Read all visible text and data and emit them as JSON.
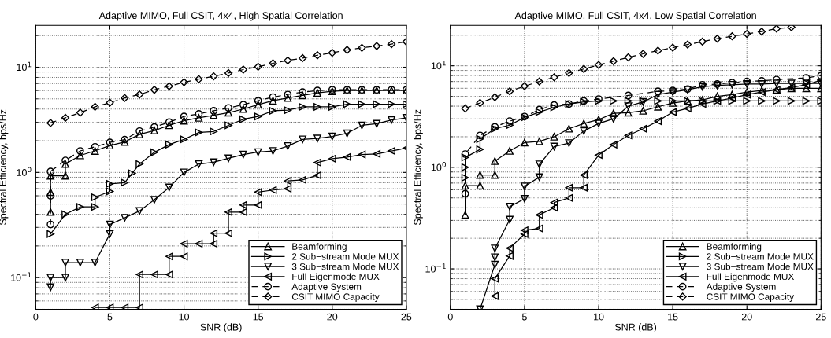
{
  "chart_data": [
    {
      "type": "line",
      "title": "Adaptive MIMO, Full CSIT, 4x4, High Spatial Correlation",
      "xlabel": "SNR (dB)",
      "ylabel": "Spectral Efficiency, bps/Hz",
      "log": "y",
      "xlim": [
        0,
        25
      ],
      "xticks": [
        0,
        5,
        10,
        15,
        20,
        25
      ],
      "ylim": [
        0.05,
        25
      ],
      "yticks": [
        {
          "value": 0.1,
          "label": "10$^{−1}$"
        },
        {
          "value": 1,
          "label": "10$^{0}$"
        },
        {
          "value": 10,
          "label": "10$^{1}$"
        }
      ],
      "grid": true,
      "legend": "bottom right",
      "series": [
        {
          "name": "Beamforming",
          "color": "#000000",
          "marker": "triangle-up",
          "line_style": "solid",
          "x": [
            1,
            1,
            1,
            2,
            2,
            3,
            4,
            5,
            6,
            7,
            8,
            9,
            10,
            11,
            12,
            13,
            14,
            15,
            16,
            17,
            18,
            19,
            20,
            21,
            22,
            23,
            24,
            25
          ],
          "values": [
            0.42,
            0.65,
            0.93,
            0.93,
            1.2,
            1.45,
            1.6,
            1.8,
            1.95,
            2.3,
            2.5,
            2.8,
            3.1,
            3.3,
            3.5,
            3.7,
            4.0,
            4.4,
            4.8,
            5.1,
            5.4,
            5.7,
            5.9,
            6.0,
            6.0,
            6.0,
            6.0,
            6.0
          ]
        },
        {
          "name": "2 Sub−stream Mode MUX",
          "color": "#000000",
          "marker": "triangle-right",
          "line_style": "solid",
          "x": [
            1,
            2,
            3,
            4,
            4,
            5,
            5,
            6,
            6.5,
            7,
            8,
            9,
            10,
            11,
            12,
            13,
            14,
            15,
            16,
            17,
            18,
            19,
            20,
            21,
            22,
            23,
            24,
            25
          ],
          "values": [
            0.26,
            0.4,
            0.47,
            0.47,
            0.58,
            0.66,
            0.78,
            0.8,
            0.98,
            1.2,
            1.55,
            1.84,
            2.06,
            2.4,
            2.45,
            2.8,
            3.2,
            3.4,
            3.85,
            3.9,
            4.2,
            4.2,
            4.2,
            4.45,
            4.45,
            4.45,
            4.45,
            4.45
          ]
        },
        {
          "name": "3 Sub−stream Mode MUX",
          "color": "#000000",
          "marker": "triangle-down",
          "line_style": "solid",
          "x": [
            1,
            1,
            2,
            2,
            3,
            4,
            5,
            5,
            6,
            7,
            8,
            9,
            10,
            11,
            12,
            13,
            14,
            15,
            16,
            17,
            18,
            19,
            20,
            21,
            22,
            23,
            24,
            25
          ],
          "values": [
            0.081,
            0.1,
            0.1,
            0.139,
            0.139,
            0.139,
            0.26,
            0.32,
            0.37,
            0.43,
            0.55,
            0.72,
            1.0,
            1.2,
            1.25,
            1.36,
            1.48,
            1.56,
            1.6,
            1.78,
            2.06,
            2.1,
            2.2,
            2.35,
            2.8,
            2.9,
            3.15,
            3.3
          ]
        },
        {
          "name": "Full Eigenmode MUX",
          "color": "#000000",
          "marker": "triangle-left",
          "line_style": "solid",
          "x": [
            4,
            5,
            6,
            7,
            7,
            8,
            9,
            9,
            10,
            10,
            11,
            12,
            12,
            13,
            13,
            14,
            14,
            15,
            15,
            16,
            17,
            17,
            18,
            19,
            19,
            20,
            21,
            22,
            23,
            24,
            25
          ],
          "values": [
            0.052,
            0.052,
            0.052,
            0.052,
            0.107,
            0.107,
            0.107,
            0.159,
            0.159,
            0.21,
            0.21,
            0.21,
            0.264,
            0.264,
            0.42,
            0.42,
            0.49,
            0.49,
            0.65,
            0.68,
            0.7,
            0.83,
            0.85,
            0.94,
            1.24,
            1.35,
            1.4,
            1.48,
            1.5,
            1.6,
            1.7
          ]
        },
        {
          "name": "Adaptive System",
          "color": "#000000",
          "marker": "circle",
          "line_style": "dashed",
          "x": [
            1,
            1,
            1,
            2,
            3,
            4,
            5,
            6,
            7,
            8,
            9,
            10,
            11,
            12,
            13,
            14,
            15,
            16,
            17,
            18,
            19,
            20,
            21,
            22,
            23,
            24,
            25
          ],
          "values": [
            0.32,
            0.6,
            1.02,
            1.3,
            1.6,
            1.75,
            1.93,
            2.05,
            2.47,
            2.7,
            3.0,
            3.4,
            3.6,
            3.85,
            4.1,
            4.4,
            4.8,
            5.2,
            5.5,
            5.8,
            6.0,
            6.1,
            6.1,
            6.1,
            6.1,
            6.1,
            6.1
          ]
        },
        {
          "name": "CSIT MIMO Capacity",
          "color": "#000000",
          "marker": "diamond",
          "line_style": "dashed",
          "x": [
            1,
            2,
            3,
            4,
            5,
            6,
            7,
            8,
            9,
            10,
            11,
            12,
            13,
            14,
            15,
            16,
            17,
            18,
            19,
            20,
            21,
            22,
            23,
            24,
            25
          ],
          "values": [
            2.95,
            3.3,
            3.7,
            4.2,
            4.6,
            5.1,
            5.5,
            6.1,
            6.6,
            7.2,
            7.7,
            8.2,
            8.8,
            9.5,
            10.1,
            10.9,
            11.6,
            12.2,
            13.0,
            13.7,
            14.6,
            15.3,
            15.9,
            16.6,
            17.5
          ]
        }
      ]
    },
    {
      "type": "line",
      "title": "Adaptive MIMO, Full CSIT, 4x4, Low Spatial Correlation",
      "xlabel": "SNR (dB)",
      "ylabel": "Spectral Efficiency, bps/Hz",
      "log": "y",
      "xlim": [
        0,
        25
      ],
      "xticks": [
        0,
        5,
        10,
        15,
        20,
        25
      ],
      "ylim": [
        0.04,
        25
      ],
      "yticks": [
        {
          "value": 0.1,
          "label": "10$^{−1}$"
        },
        {
          "value": 1,
          "label": "10$^{0}$"
        },
        {
          "value": 10,
          "label": "10$^{1}$"
        }
      ],
      "grid": true,
      "legend": "bottom right",
      "series": [
        {
          "name": "Beamforming",
          "color": "#000000",
          "marker": "triangle-up",
          "line_style": "solid",
          "x": [
            1,
            1,
            2,
            2,
            3,
            3,
            4,
            5,
            6,
            7,
            8,
            9,
            10,
            11,
            12,
            13,
            14,
            15,
            16,
            17,
            18,
            19,
            20,
            21,
            22,
            23,
            24,
            25
          ],
          "values": [
            0.34,
            0.66,
            0.66,
            0.84,
            0.84,
            1.15,
            1.45,
            1.75,
            1.8,
            2.0,
            2.4,
            2.7,
            2.95,
            3.4,
            3.45,
            3.6,
            3.95,
            4.3,
            4.5,
            4.6,
            5.0,
            5.2,
            5.5,
            5.7,
            5.8,
            6.0,
            6.0,
            6.0
          ]
        },
        {
          "name": "2 Sub−stream Mode MUX",
          "color": "#000000",
          "marker": "triangle-right",
          "line_style": "solid",
          "x": [
            1,
            1,
            1,
            2,
            2,
            3,
            4,
            5,
            6,
            7,
            8,
            9,
            10,
            11,
            12,
            13,
            14,
            15,
            16,
            17,
            18,
            19,
            20,
            21,
            22,
            23,
            24,
            25
          ],
          "values": [
            0.79,
            1.0,
            1.25,
            1.5,
            1.9,
            2.4,
            2.6,
            3.1,
            3.5,
            3.9,
            4.2,
            4.4,
            4.5,
            4.5,
            4.5,
            4.5,
            4.5,
            4.5,
            4.5,
            4.5,
            4.5,
            4.5,
            4.5,
            4.5,
            4.5,
            4.5,
            4.5,
            4.5
          ]
        },
        {
          "name": "3 Sub−stream Mode MUX",
          "color": "#000000",
          "marker": "triangle-down",
          "line_style": "solid",
          "x": [
            2,
            3,
            3,
            3,
            4,
            4,
            5,
            5,
            6,
            6,
            7,
            8,
            9,
            10,
            11,
            12,
            13,
            14,
            15,
            16,
            17,
            18,
            19,
            20,
            21,
            22,
            23,
            24,
            25
          ],
          "values": [
            0.04,
            0.11,
            0.13,
            0.159,
            0.305,
            0.41,
            0.49,
            0.65,
            0.8,
            1.07,
            1.6,
            1.73,
            2.28,
            2.7,
            3.0,
            4.0,
            4.4,
            5.2,
            5.5,
            5.8,
            6.2,
            6.4,
            6.5,
            6.6,
            6.6,
            6.7,
            6.7,
            6.7,
            6.7
          ]
        },
        {
          "name": "Full Eigenmode MUX",
          "color": "#000000",
          "marker": "triangle-left",
          "line_style": "solid",
          "x": [
            3,
            3,
            4,
            4,
            5,
            5,
            6,
            6,
            7,
            7,
            8,
            8,
            9,
            9,
            10,
            11,
            12,
            13,
            14,
            15,
            16,
            17,
            18,
            19,
            20,
            21,
            22,
            23,
            24,
            25
          ],
          "values": [
            0.054,
            0.08,
            0.134,
            0.16,
            0.22,
            0.24,
            0.25,
            0.34,
            0.4,
            0.45,
            0.5,
            0.63,
            0.63,
            0.84,
            1.32,
            1.67,
            2.06,
            2.4,
            2.85,
            3.5,
            3.8,
            4.2,
            4.5,
            4.8,
            5.2,
            5.5,
            5.8,
            6.1,
            6.5,
            7.2
          ]
        },
        {
          "name": "Adaptive System",
          "color": "#000000",
          "marker": "circle",
          "line_style": "dashed",
          "x": [
            1,
            1,
            2,
            3,
            4,
            5,
            6,
            7,
            8,
            9,
            10,
            12,
            14,
            15,
            16,
            17,
            18,
            19,
            20,
            21,
            22,
            24,
            25
          ],
          "values": [
            0.55,
            1.35,
            2.06,
            2.5,
            2.85,
            3.16,
            3.7,
            4.1,
            4.2,
            4.5,
            4.7,
            5.1,
            5.6,
            5.7,
            5.9,
            6.5,
            6.6,
            6.8,
            7.0,
            7.1,
            7.3,
            7.6,
            8.0
          ]
        },
        {
          "name": "CSIT MIMO Capacity",
          "color": "#000000",
          "marker": "diamond",
          "line_style": "dashed",
          "x": [
            1,
            2,
            3,
            4,
            5,
            6,
            7,
            8,
            9,
            10,
            11,
            12,
            13,
            14,
            15,
            16,
            17,
            18,
            19,
            20,
            21,
            22,
            23
          ],
          "values": [
            3.8,
            4.3,
            4.9,
            5.6,
            6.3,
            7.0,
            7.7,
            8.5,
            9.3,
            10.2,
            11.1,
            12.1,
            13.1,
            14.1,
            15.1,
            16.2,
            17.3,
            18.5,
            19.5,
            20.6,
            21.7,
            23.2,
            24.0
          ]
        }
      ]
    }
  ]
}
